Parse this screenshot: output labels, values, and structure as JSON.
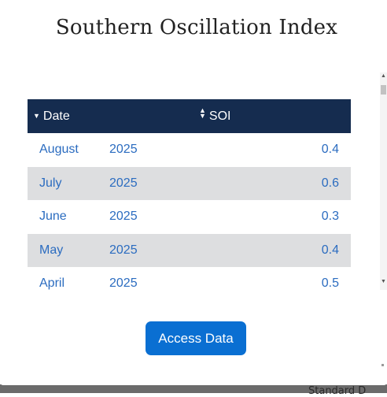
{
  "title": "Southern Oscillation Index",
  "table": {
    "columns": {
      "date": "Date",
      "soi": "SOI"
    },
    "rows": [
      {
        "month": "August",
        "year": "2025",
        "soi": "0.4"
      },
      {
        "month": "July",
        "year": "2025",
        "soi": "0.6"
      },
      {
        "month": "June",
        "year": "2025",
        "soi": "0.3"
      },
      {
        "month": "May",
        "year": "2025",
        "soi": "0.4"
      },
      {
        "month": "April",
        "year": "2025",
        "soi": "0.5"
      }
    ]
  },
  "button": {
    "access_label": "Access Data"
  },
  "background": {
    "partial_text": "Standard D"
  },
  "colors": {
    "header_bg": "#152c4f",
    "link_blue": "#2b6cc0",
    "button_bg": "#0a6fd2",
    "row_alt": "#dddee0"
  },
  "icons": {
    "date_sort": "sort-descending-icon",
    "soi_sort": "sort-both-icon"
  }
}
